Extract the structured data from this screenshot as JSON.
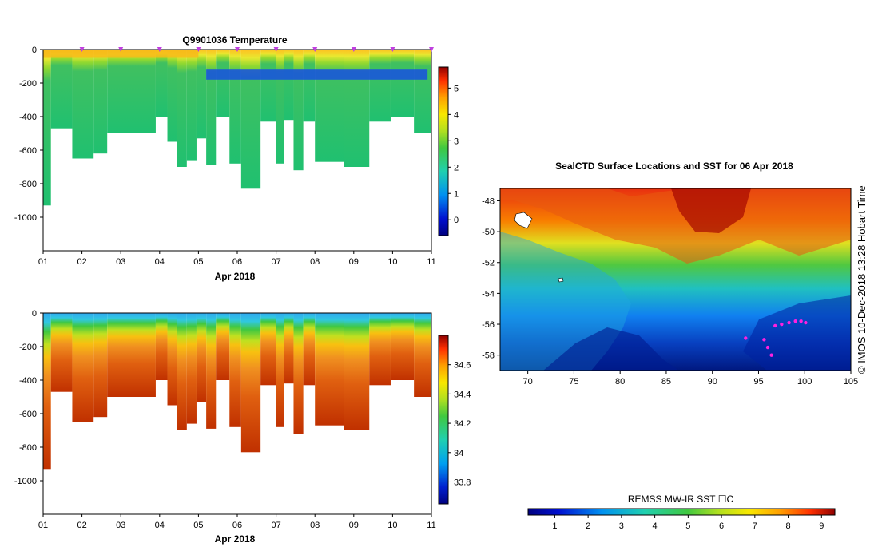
{
  "chart_data": [
    {
      "type": "heatmap",
      "title": "Q9901036  Temperature",
      "xlabel": "Apr 2018",
      "ylabel": "",
      "x_ticks": [
        "01",
        "02",
        "03",
        "04",
        "05",
        "06",
        "07",
        "08",
        "09",
        "10",
        "11"
      ],
      "xlim": [
        1,
        11
      ],
      "ylim": [
        -1200,
        0
      ],
      "y_ticks": [
        "0",
        "-200",
        "-400",
        "-600",
        "-800",
        "-1000"
      ],
      "y_tick_values": [
        0,
        -200,
        -400,
        -600,
        -800,
        -1000
      ],
      "profile_markers": [
        2,
        3,
        4,
        5,
        6,
        7,
        8,
        9,
        10,
        11
      ],
      "colorbar": {
        "ticks": [
          "0",
          "1",
          "2",
          "3",
          "4",
          "5"
        ],
        "tick_values": [
          0,
          1,
          2,
          3,
          4,
          5
        ],
        "range": [
          -0.6,
          5.8
        ]
      },
      "profile_depths": [
        [
          1.0,
          1.2,
          -930
        ],
        [
          1.2,
          1.75,
          -470
        ],
        [
          1.75,
          2.3,
          -650
        ],
        [
          2.3,
          2.65,
          -620
        ],
        [
          2.65,
          3.0,
          -500
        ],
        [
          3.0,
          3.5,
          -500
        ],
        [
          3.5,
          3.9,
          -500
        ],
        [
          3.9,
          4.2,
          -400
        ],
        [
          4.2,
          4.45,
          -550
        ],
        [
          4.45,
          4.7,
          -700
        ],
        [
          4.7,
          4.95,
          -660
        ],
        [
          4.95,
          5.2,
          -530
        ],
        [
          5.2,
          5.45,
          -690
        ],
        [
          5.45,
          5.8,
          -400
        ],
        [
          5.8,
          6.1,
          -680
        ],
        [
          6.1,
          6.6,
          -830
        ],
        [
          6.6,
          7.0,
          -430
        ],
        [
          7.0,
          7.2,
          -680
        ],
        [
          7.2,
          7.45,
          -420
        ],
        [
          7.45,
          7.7,
          -720
        ],
        [
          7.7,
          8.0,
          -430
        ],
        [
          8.0,
          8.75,
          -670
        ],
        [
          8.75,
          9.4,
          -700
        ],
        [
          9.4,
          9.95,
          -430
        ],
        [
          9.95,
          10.55,
          -400
        ],
        [
          10.55,
          11.05,
          -500
        ]
      ]
    },
    {
      "type": "heatmap",
      "title": "",
      "xlabel": "Apr 2018",
      "ylabel": "",
      "x_ticks": [
        "01",
        "02",
        "03",
        "04",
        "05",
        "06",
        "07",
        "08",
        "09",
        "10",
        "11"
      ],
      "xlim": [
        1,
        11
      ],
      "ylim": [
        -1200,
        0
      ],
      "y_ticks": [
        "0",
        "-200",
        "-400",
        "-600",
        "-800",
        "-1000"
      ],
      "y_tick_values": [
        0,
        -200,
        -400,
        -600,
        -800,
        -1000
      ],
      "colorbar": {
        "ticks": [
          "33.8",
          "34",
          "34.2",
          "34.4",
          "34.6"
        ],
        "tick_values": [
          33.8,
          34.0,
          34.2,
          34.4,
          34.6
        ],
        "range": [
          33.65,
          34.8
        ]
      }
    },
    {
      "type": "heatmap",
      "title": "SealCTD Surface Locations and SST for 06 Apr 2018",
      "xlabel": "",
      "ylabel": "",
      "xlim": [
        67,
        105
      ],
      "ylim": [
        -59,
        -47.2
      ],
      "x_ticks": [
        "70",
        "75",
        "80",
        "85",
        "90",
        "95",
        "100",
        "105"
      ],
      "x_tick_values": [
        70,
        75,
        80,
        85,
        90,
        95,
        100,
        105
      ],
      "y_ticks": [
        "-48",
        "-50",
        "-52",
        "-54",
        "-56",
        "-58"
      ],
      "y_tick_values": [
        -48,
        -50,
        -52,
        -54,
        -56,
        -58
      ],
      "colorbar": {
        "label": "REMSS MW-IR SST ☐C",
        "ticks": [
          "1",
          "2",
          "3",
          "4",
          "5",
          "6",
          "7",
          "8",
          "9"
        ],
        "tick_values": [
          1,
          2,
          3,
          4,
          5,
          6,
          7,
          8,
          9
        ],
        "range": [
          0.2,
          9.4
        ]
      },
      "track_points": [
        [
          96.8,
          -56.1
        ],
        [
          97.5,
          -56.0
        ],
        [
          98.3,
          -55.9
        ],
        [
          99.0,
          -55.8
        ],
        [
          99.6,
          -55.8
        ],
        [
          100.1,
          -55.9
        ],
        [
          95.6,
          -57.0
        ],
        [
          96.0,
          -57.5
        ],
        [
          96.4,
          -58.0
        ],
        [
          93.6,
          -56.9
        ]
      ]
    }
  ],
  "credit": "©  IMOS 10-Dec-2018 13:28 Hobart Time"
}
